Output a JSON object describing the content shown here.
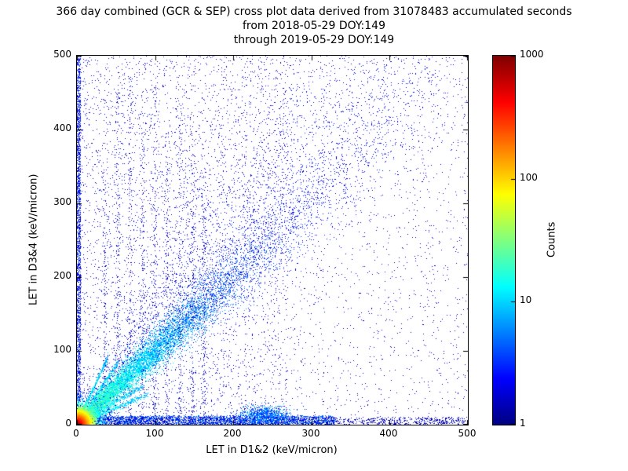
{
  "title": {
    "line1": "366 day combined (GCR & SEP) cross plot data derived from 31078483 accumulated seconds",
    "line2": "from 2018-05-29 DOY:149",
    "line3": "through 2019-05-29 DOY:149"
  },
  "chart_data": {
    "type": "heatmap",
    "title": "366 day combined (GCR & SEP) cross plot data derived from 31078483 accumulated seconds from 2018-05-29 DOY:149 through 2019-05-29 DOY:149",
    "xlabel": "LET in D1&2 (keV/micron)",
    "ylabel": "LET in D3&4 (keV/micron)",
    "xlim": [
      0,
      500
    ],
    "ylim": [
      0,
      500
    ],
    "x_ticks": [
      "0",
      "100",
      "200",
      "300",
      "400",
      "500"
    ],
    "y_ticks": [
      "500",
      "400",
      "300",
      "200",
      "100",
      "0"
    ],
    "x_tick_values": [
      0,
      100,
      200,
      300,
      400,
      500
    ],
    "y_tick_values": [
      0,
      100,
      200,
      300,
      400,
      500
    ],
    "grid": false,
    "colormap": "jet",
    "colorbar": {
      "label": "Counts",
      "scale": "log",
      "min": 1,
      "max": 1000,
      "tick_labels_top_to_bottom": [
        "1000",
        "100",
        "10",
        "1"
      ],
      "tick_values": [
        1,
        10,
        100,
        1000
      ]
    },
    "description": "2D histogram on a log color scale (1 to 1000 counts) of coincident LET in detectors D1&2 vs D3&4. Intense hot spot at the origin, a dense correlation band along y = x fanning out with energy, chance-coincidence bands hugging both axes, faint vertical striping at low D1&2 LET, and sparse single-count background everywhere.",
    "seed": 42,
    "features": [
      {
        "kind": "uniform",
        "desc": "sparse single-count background",
        "n": 3200,
        "xr": [
          0,
          500
        ],
        "yr": [
          0,
          500
        ],
        "count": [
          1,
          2
        ]
      },
      {
        "kind": "uniform",
        "desc": "enhanced background in left half",
        "n": 2400,
        "xr": [
          0,
          270
        ],
        "yr": [
          0,
          500
        ],
        "count": [
          1,
          2
        ]
      },
      {
        "kind": "wedge",
        "desc": "diffuse fan above main diagonal",
        "n": 2600,
        "xr": [
          0,
          460
        ],
        "spread": 0.55,
        "jitter": 14,
        "count": [
          1,
          3
        ]
      },
      {
        "kind": "vstripes",
        "desc": "faint vertical instrument stripes",
        "xs": [
          36,
          52,
          68,
          84,
          100,
          116,
          132,
          148,
          163
        ],
        "ymaxs": [
          350,
          460,
          480,
          430,
          470,
          400,
          440,
          380,
          300
        ],
        "n": 170,
        "sigma": 1.6,
        "count": [
          1,
          2
        ]
      },
      {
        "kind": "band",
        "desc": "chance-coincidence band along x-axis",
        "n": 2800,
        "xr": [
          0,
          330
        ],
        "yr": [
          0,
          12
        ],
        "count": [
          2,
          6
        ]
      },
      {
        "kind": "band",
        "desc": "sparse band along x-axis full range",
        "n": 1400,
        "xr": [
          0,
          500
        ],
        "yr": [
          0,
          10
        ],
        "count": [
          1,
          2
        ]
      },
      {
        "kind": "band",
        "desc": "dense column along y-axis",
        "n": 1600,
        "xr": [
          0,
          5
        ],
        "yr": [
          0,
          500
        ],
        "count": [
          1,
          4
        ]
      },
      {
        "kind": "gauss",
        "desc": "cluster near (240,13)",
        "n": 900,
        "cx": 240,
        "cy": 13,
        "sx": 16,
        "sy": 6,
        "count": [
          2,
          8
        ]
      },
      {
        "kind": "diag",
        "desc": "main GCR correlation band y ≈ x",
        "n": 10000,
        "scale": 150,
        "rmax": 700,
        "sigma0": 2.5,
        "sigmak": 0.05,
        "countNear": 25,
        "countFar": 2,
        "cdecay": 110
      },
      {
        "kind": "rays",
        "desc": "low-energy rays fanning from origin",
        "slopes": [
          0.45,
          0.62,
          1.6,
          2.3
        ],
        "n": 520,
        "rmax": 100,
        "sigma": 1.8,
        "countNear": 30,
        "countFar": 6
      },
      {
        "kind": "blob",
        "desc": "high-count hot spot at origin",
        "n": 7000,
        "decay": 9,
        "cmax": 1000,
        "cdecay": 7
      }
    ]
  }
}
